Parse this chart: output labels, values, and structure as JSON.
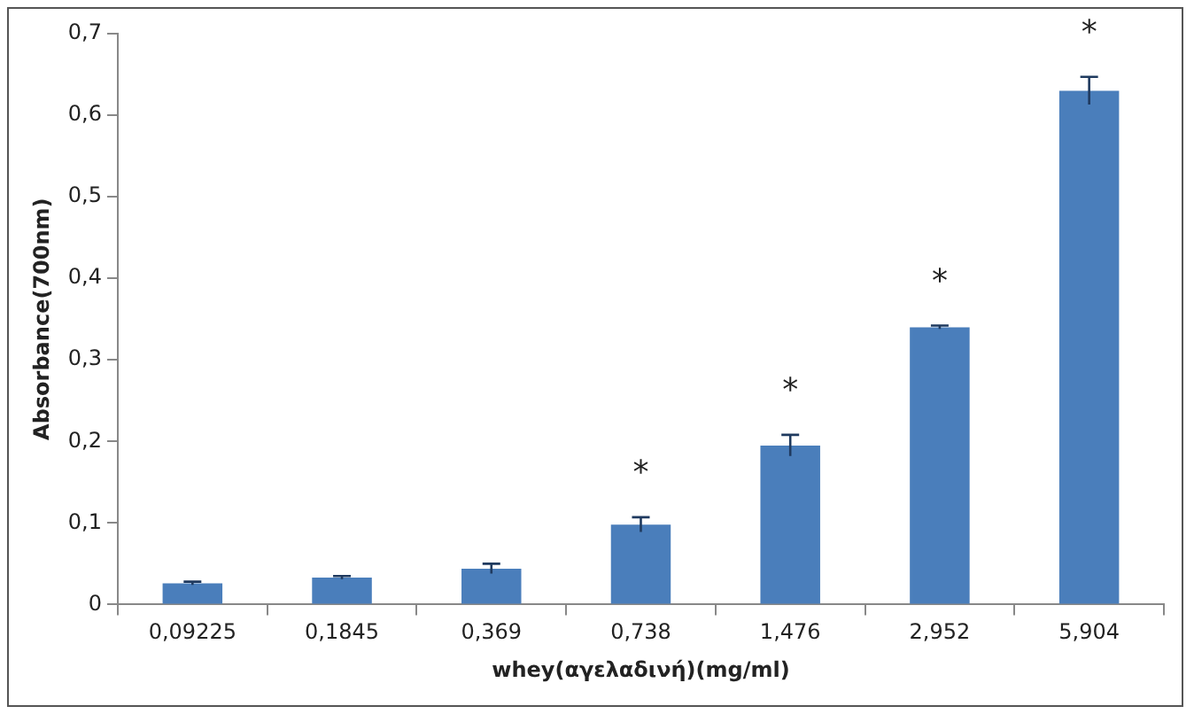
{
  "chart_data": {
    "type": "bar",
    "xlabel": "whey(αγελαδινή)(mg/ml)",
    "ylabel": "Absorbance(700nm)",
    "categories": [
      "0,09225",
      "0,1845",
      "0,369",
      "0,738",
      "1,476",
      "2,952",
      "5,904"
    ],
    "values": [
      0.026,
      0.033,
      0.044,
      0.098,
      0.195,
      0.34,
      0.63
    ],
    "errors": [
      0.002,
      0.002,
      0.006,
      0.009,
      0.013,
      0.002,
      0.017
    ],
    "color": "#4a7ebb",
    "ylim": [
      0,
      0.7
    ],
    "yticks": [
      0,
      {
        "value": 0.1,
        "label": "0,1"
      },
      {
        "value": 0.2,
        "label": "0,2"
      },
      {
        "value": 0.3,
        "label": "0,3"
      },
      {
        "value": 0.4,
        "label": "0,4"
      },
      {
        "value": 0.5,
        "label": "0,5"
      },
      {
        "value": 0.6,
        "label": "0,6"
      },
      {
        "value": 0.7,
        "label": "0,7"
      }
    ],
    "grid": false,
    "legend": false,
    "annotations": [
      {
        "text": "*",
        "x": "0,738",
        "y": 0.098
      },
      {
        "text": "*",
        "x": "1,476",
        "y": 0.195
      },
      {
        "text": "*",
        "x": "2,952",
        "y": 0.34
      },
      {
        "text": "*",
        "x": "5,904",
        "y": 0.63
      }
    ]
  }
}
